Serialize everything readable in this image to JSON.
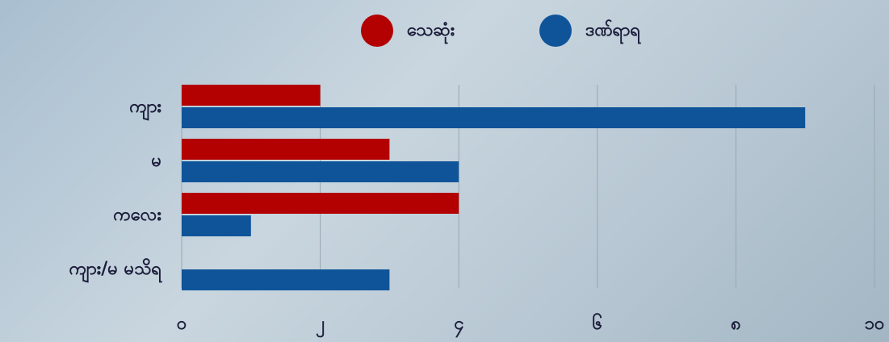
{
  "chart_data": {
    "type": "hbar",
    "categories": [
      "ကျား",
      "မ",
      "ကလေး",
      "ကျား/မ မသိရ"
    ],
    "series": [
      {
        "name": "သေဆုံး",
        "color": "#b30000",
        "values": [
          2,
          3,
          4,
          0
        ]
      },
      {
        "name": "ဒဏ်ရာရ",
        "color": "#0f5499",
        "values": [
          9,
          4,
          1,
          3
        ]
      }
    ],
    "xlim": [
      0,
      10
    ],
    "xticks": [
      {
        "value": 0,
        "label": "၀"
      },
      {
        "value": 2,
        "label": "၂"
      },
      {
        "value": 4,
        "label": "၄"
      },
      {
        "value": 6,
        "label": "၆"
      },
      {
        "value": 8,
        "label": "၈"
      },
      {
        "value": 10,
        "label": "၁၀"
      }
    ],
    "grid": true
  }
}
